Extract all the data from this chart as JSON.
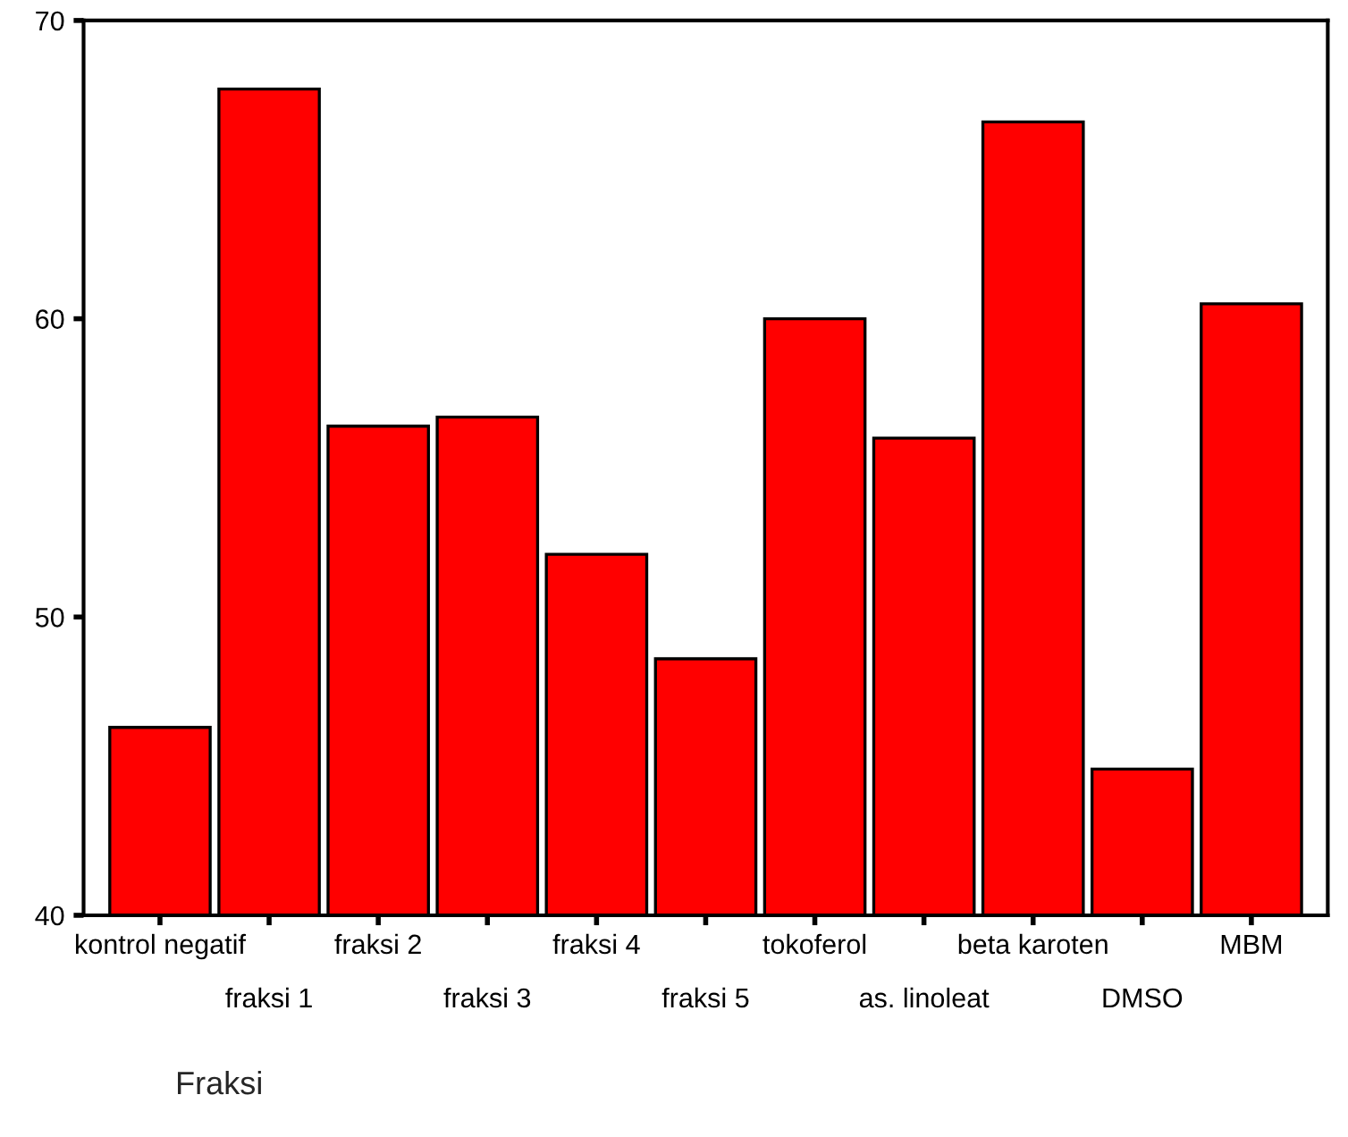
{
  "chart_data": {
    "type": "bar",
    "xlabel": "Fraksi",
    "categories": [
      "kontrol negatif",
      "fraksi 1",
      "fraksi 2",
      "fraksi 3",
      "fraksi 4",
      "fraksi 5",
      "tokoferol",
      "as. linoleat",
      "beta karoten",
      "DMSO",
      "MBM"
    ],
    "values": [
      46.3,
      67.7,
      56.4,
      56.7,
      52.1,
      48.6,
      60.0,
      56.0,
      66.6,
      44.9,
      60.5
    ],
    "color": "#ff0000",
    "ylim": [
      40,
      70
    ],
    "yticks": [
      40,
      50,
      60,
      70
    ],
    "grid": false,
    "legend": false
  }
}
